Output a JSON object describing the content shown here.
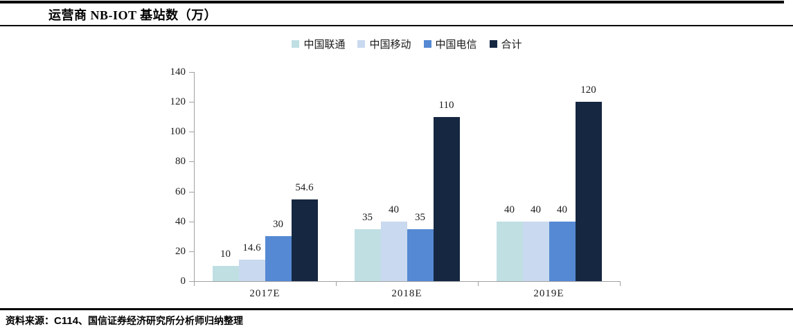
{
  "header": {
    "title": "运营商 NB-IOT 基站数（万）"
  },
  "footer": {
    "source_label": "资料来源：",
    "source_c114": "C114",
    "source_rest": "、国信证券经济研究所分析师归纳整理"
  },
  "chart_data": {
    "type": "bar",
    "title": "运营商 NB-IOT 基站数（万）",
    "categories": [
      "2017E",
      "2018E",
      "2019E"
    ],
    "series": [
      {
        "name": "中国联通",
        "color": "#bfdfe3",
        "values": [
          10,
          35,
          40
        ]
      },
      {
        "name": "中国移动",
        "color": "#c9d9ef",
        "values": [
          14.6,
          40,
          40
        ]
      },
      {
        "name": "中国电信",
        "color": "#5589d3",
        "values": [
          30,
          35,
          40
        ]
      },
      {
        "name": "合计",
        "color": "#152741",
        "values": [
          54.6,
          110,
          120
        ]
      }
    ],
    "ylim": [
      0,
      140
    ],
    "yticks": [
      0,
      20,
      40,
      60,
      80,
      100,
      120,
      140
    ],
    "xlabel": "",
    "ylabel": "",
    "legend_position": "top",
    "grid": false,
    "data_labels": true,
    "axis_color": "#a0a0a0"
  }
}
